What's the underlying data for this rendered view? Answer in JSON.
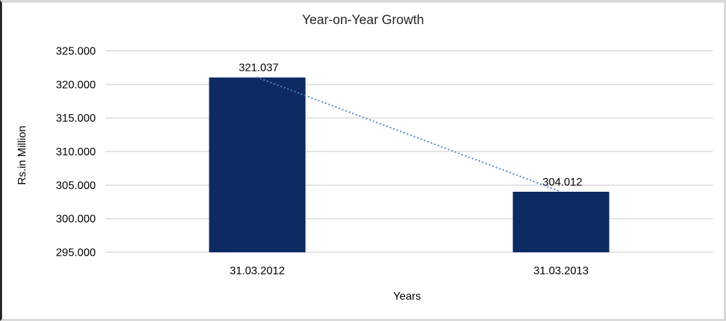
{
  "chart_data": {
    "type": "bar",
    "title": "Year-on-Year Growth",
    "xlabel": "Years",
    "ylabel": "Rs.in Million",
    "categories": [
      "31.03.2012",
      "31.03.2013"
    ],
    "values": [
      321.037,
      304.012
    ],
    "data_labels": [
      "321.037",
      "304.012"
    ],
    "ylim": [
      295,
      325
    ],
    "ytick_step": 5,
    "ytick_labels": [
      "325.000",
      "320.000",
      "315.000",
      "310.000",
      "305.000",
      "300.000",
      "295.000"
    ],
    "grid": true,
    "legend": "none",
    "trendline": {
      "style": "dotted",
      "from_category_index": 0,
      "to_category_index": 1
    },
    "colors": {
      "bar": "#0d2a63",
      "trendline": "#4f86c6",
      "gridline": "#d9d9d9",
      "text": "#000000",
      "title_text": "#262626"
    }
  }
}
